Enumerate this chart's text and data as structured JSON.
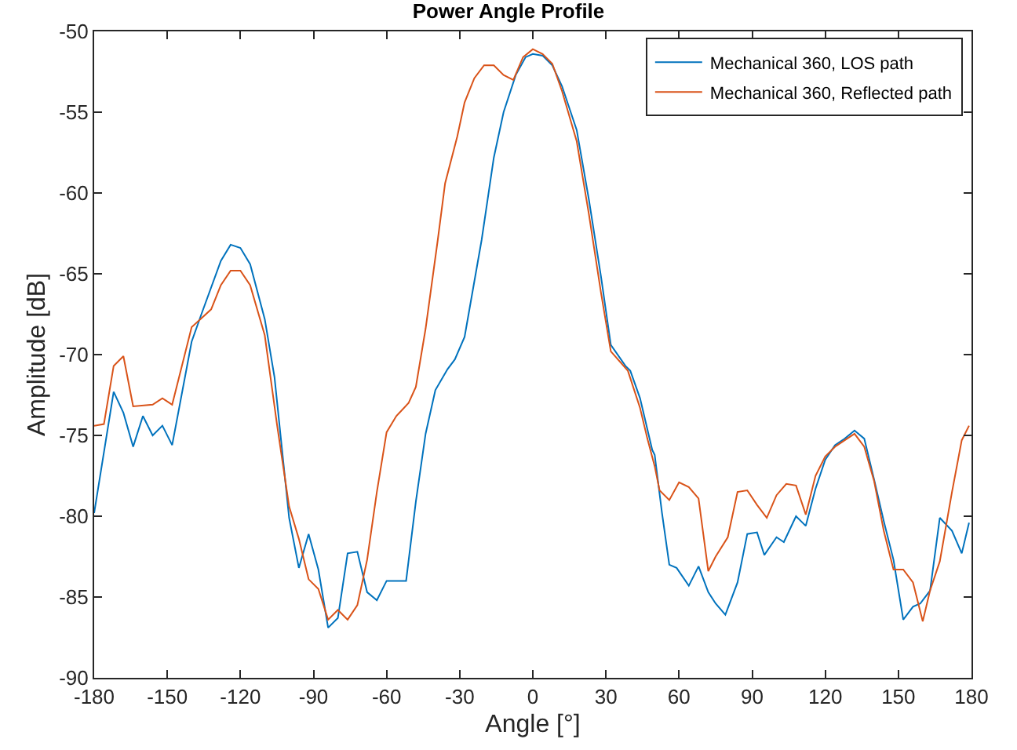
{
  "chart_data": {
    "type": "line",
    "title": "Power Angle Profile",
    "xlabel": "Angle [°]",
    "ylabel": "Amplitude [dB]",
    "xlim": [
      -180,
      180
    ],
    "xticks": [
      -180,
      -150,
      -120,
      -90,
      -60,
      -30,
      0,
      30,
      60,
      90,
      120,
      150,
      180
    ],
    "ylim": [
      -90,
      -50
    ],
    "yticks": [
      -90,
      -85,
      -80,
      -75,
      -70,
      -65,
      -60,
      -55,
      -50
    ],
    "grid": false,
    "legend": "top right",
    "marker": "none",
    "line_style": "solid",
    "series": [
      {
        "name": "Mechanical 360, LOS path",
        "color": "#0072bd",
        "x": [
          -180,
          -172,
          -168,
          -164,
          -160,
          -156,
          -152,
          -148,
          -140,
          -136,
          -128,
          -124,
          -120,
          -116,
          -110,
          -106,
          -100,
          -96,
          -92,
          -88,
          -84,
          -80,
          -76,
          -72,
          -68,
          -64,
          -60,
          -55,
          -52,
          -48,
          -44,
          -40,
          -35,
          -32,
          -28,
          -21,
          -16,
          -12,
          -7,
          -3,
          0,
          4,
          8,
          12,
          18,
          23,
          28,
          32,
          38,
          40,
          44,
          49,
          50,
          53,
          56,
          59,
          64,
          68,
          72,
          75,
          79,
          84,
          88,
          92,
          95,
          100,
          103,
          108,
          112,
          116,
          120,
          124,
          128,
          132,
          136,
          140,
          144,
          148,
          152,
          156,
          159,
          163,
          167,
          172,
          176,
          179
        ],
        "values": [
          -79.8,
          -72.3,
          -73.6,
          -75.7,
          -73.8,
          -75.0,
          -74.4,
          -75.6,
          -69.2,
          -67.5,
          -64.2,
          -63.2,
          -63.4,
          -64.4,
          -67.8,
          -71.4,
          -80.1,
          -83.2,
          -81.1,
          -83.3,
          -86.9,
          -86.3,
          -82.3,
          -82.2,
          -84.7,
          -85.2,
          -84.0,
          -84.0,
          -84.0,
          -79.1,
          -74.9,
          -72.2,
          -70.9,
          -70.3,
          -68.9,
          -62.9,
          -57.8,
          -55.0,
          -52.7,
          -51.6,
          -51.4,
          -51.5,
          -52.1,
          -53.4,
          -56.1,
          -60.4,
          -65.2,
          -69.4,
          -70.7,
          -71.0,
          -72.7,
          -75.9,
          -76.2,
          -79.8,
          -83.0,
          -83.2,
          -84.3,
          -83.1,
          -84.7,
          -85.4,
          -86.1,
          -84.1,
          -81.1,
          -81.0,
          -82.4,
          -81.3,
          -81.6,
          -80.0,
          -80.6,
          -78.3,
          -76.5,
          -75.6,
          -75.2,
          -74.7,
          -75.2,
          -77.7,
          -80.3,
          -82.7,
          -86.4,
          -85.6,
          -85.4,
          -84.6,
          -80.1,
          -80.9,
          -82.3,
          -80.4
        ]
      },
      {
        "name": "Mechanical 360, Reflected path",
        "color": "#d95319",
        "x": [
          -180,
          -176,
          -172,
          -168,
          -164,
          -156,
          -152,
          -148,
          -140,
          -132,
          -128,
          -124,
          -120,
          -116,
          -110,
          -105,
          -100,
          -96,
          -92,
          -88,
          -84,
          -80,
          -76,
          -72,
          -68,
          -64,
          -60,
          -56,
          -51,
          -48,
          -44,
          -39,
          -36,
          -31,
          -28,
          -24,
          -20,
          -16,
          -12,
          -8,
          -4,
          0,
          4,
          8,
          12,
          18,
          23,
          28,
          32,
          39,
          44,
          47,
          50,
          52,
          56,
          60,
          64,
          68,
          72,
          75,
          80,
          84,
          88,
          92,
          96,
          100,
          104,
          108,
          112,
          116,
          120,
          124,
          128,
          132,
          136,
          140,
          144,
          148,
          152,
          156,
          160,
          163,
          167,
          172,
          176,
          179
        ],
        "values": [
          -74.4,
          -74.3,
          -70.7,
          -70.1,
          -73.2,
          -73.1,
          -72.7,
          -73.1,
          -68.3,
          -67.2,
          -65.7,
          -64.8,
          -64.8,
          -65.7,
          -68.8,
          -74.3,
          -79.4,
          -81.4,
          -83.9,
          -84.5,
          -86.4,
          -85.8,
          -86.4,
          -85.5,
          -82.7,
          -78.5,
          -74.8,
          -73.8,
          -73.0,
          -72.0,
          -68.4,
          -62.9,
          -59.4,
          -56.5,
          -54.4,
          -52.9,
          -52.1,
          -52.1,
          -52.7,
          -53.0,
          -51.6,
          -51.1,
          -51.4,
          -52.0,
          -53.7,
          -56.8,
          -61.3,
          -66.2,
          -69.8,
          -71.0,
          -73.3,
          -75.2,
          -76.9,
          -78.4,
          -79.0,
          -77.9,
          -78.2,
          -78.9,
          -83.4,
          -82.5,
          -81.3,
          -78.5,
          -78.4,
          -79.3,
          -80.1,
          -78.7,
          -78.0,
          -78.1,
          -79.9,
          -77.5,
          -76.3,
          -75.7,
          -75.3,
          -74.9,
          -75.7,
          -77.8,
          -80.9,
          -83.3,
          -83.3,
          -84.1,
          -86.5,
          -84.6,
          -82.8,
          -78.5,
          -75.3,
          -74.4
        ]
      }
    ]
  }
}
